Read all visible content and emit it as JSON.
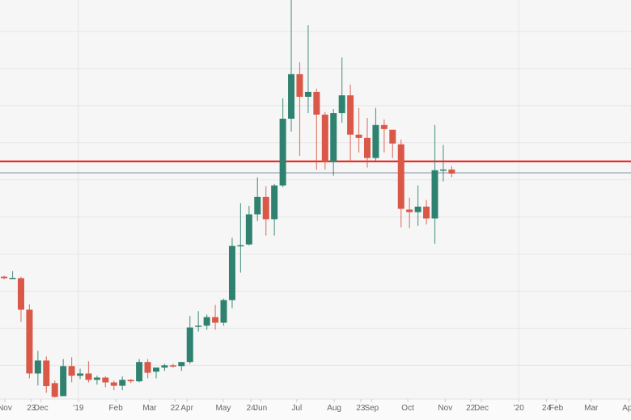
{
  "chart_data": {
    "type": "candlestick",
    "title": "",
    "xlabel": "",
    "ylabel": "",
    "ylim": [
      3180,
      13850
    ],
    "xlim": [
      "2018-10-28",
      "2020-04-03"
    ],
    "grid": {
      "horizontal": true,
      "horizontal_step": 1000,
      "vertical_at": [
        "2019-01-01",
        "2020-01-01"
      ]
    },
    "colors": {
      "up": "#2f8270",
      "down": "#d95847",
      "level_line": "#e8130f",
      "price_line": "#8a93a6",
      "background": "#f6f6f6",
      "grid": "#e6e6e6"
    },
    "horizontal_lines": [
      {
        "kind": "level",
        "value": 9500
      },
      {
        "kind": "last-price",
        "value": 9190
      }
    ],
    "x_ticks": [
      {
        "date": "2018-11-01",
        "label": "Nov"
      },
      {
        "date": "2018-11-23",
        "label": "23"
      },
      {
        "date": "2018-12-01",
        "label": "Dec"
      },
      {
        "date": "2019-01-01",
        "label": "'19"
      },
      {
        "date": "2019-02-01",
        "label": "Feb"
      },
      {
        "date": "2019-03-01",
        "label": "Mar"
      },
      {
        "date": "2019-03-22",
        "label": "22"
      },
      {
        "date": "2019-04-01",
        "label": "Apr"
      },
      {
        "date": "2019-05-01",
        "label": "May"
      },
      {
        "date": "2019-05-24",
        "label": "24"
      },
      {
        "date": "2019-06-01",
        "label": "Jun"
      },
      {
        "date": "2019-07-01",
        "label": "Jul"
      },
      {
        "date": "2019-08-01",
        "label": "Aug"
      },
      {
        "date": "2019-08-23",
        "label": "23"
      },
      {
        "date": "2019-09-01",
        "label": "Sep"
      },
      {
        "date": "2019-10-01",
        "label": "Oct"
      },
      {
        "date": "2019-11-01",
        "label": "Nov"
      },
      {
        "date": "2019-11-22",
        "label": "22"
      },
      {
        "date": "2019-12-01",
        "label": "Dec"
      },
      {
        "date": "2020-01-01",
        "label": "'20"
      },
      {
        "date": "2020-01-24",
        "label": "24"
      },
      {
        "date": "2020-02-01",
        "label": "Feb"
      },
      {
        "date": "2020-03-01",
        "label": "Mar"
      },
      {
        "date": "2020-04-01",
        "label": "Apr"
      }
    ],
    "candles": [
      {
        "date": "2018-10-29",
        "o": 6390,
        "h": 6420,
        "l": 6320,
        "c": 6350
      },
      {
        "date": "2018-11-05",
        "o": 6350,
        "h": 6540,
        "l": 6330,
        "c": 6360
      },
      {
        "date": "2018-11-12",
        "o": 6350,
        "h": 6390,
        "l": 5170,
        "c": 5500
      },
      {
        "date": "2018-11-19",
        "o": 5500,
        "h": 5650,
        "l": 3650,
        "c": 3780
      },
      {
        "date": "2018-11-26",
        "o": 3780,
        "h": 4390,
        "l": 3460,
        "c": 4130
      },
      {
        "date": "2018-12-03",
        "o": 4130,
        "h": 4240,
        "l": 3260,
        "c": 3440
      },
      {
        "date": "2018-12-10",
        "o": 3520,
        "h": 3590,
        "l": 3130,
        "c": 3150
      },
      {
        "date": "2018-12-17",
        "o": 3170,
        "h": 4170,
        "l": 3170,
        "c": 3980
      },
      {
        "date": "2018-12-24",
        "o": 3980,
        "h": 4220,
        "l": 3540,
        "c": 3720
      },
      {
        "date": "2018-12-31",
        "o": 3720,
        "h": 3910,
        "l": 3630,
        "c": 3780
      },
      {
        "date": "2019-01-07",
        "o": 3780,
        "h": 4110,
        "l": 3540,
        "c": 3610
      },
      {
        "date": "2019-01-14",
        "o": 3610,
        "h": 3720,
        "l": 3480,
        "c": 3670
      },
      {
        "date": "2019-01-21",
        "o": 3670,
        "h": 3700,
        "l": 3410,
        "c": 3540
      },
      {
        "date": "2019-01-28",
        "o": 3540,
        "h": 3590,
        "l": 3330,
        "c": 3450
      },
      {
        "date": "2019-02-04",
        "o": 3450,
        "h": 3700,
        "l": 3330,
        "c": 3610
      },
      {
        "date": "2019-02-11",
        "o": 3610,
        "h": 3630,
        "l": 3520,
        "c": 3570
      },
      {
        "date": "2019-02-18",
        "o": 3570,
        "h": 4170,
        "l": 3540,
        "c": 4090
      },
      {
        "date": "2019-02-25",
        "o": 4090,
        "h": 4170,
        "l": 3650,
        "c": 3800
      },
      {
        "date": "2019-03-04",
        "o": 3830,
        "h": 3940,
        "l": 3650,
        "c": 3940
      },
      {
        "date": "2019-03-11",
        "o": 3940,
        "h": 4040,
        "l": 3850,
        "c": 4000
      },
      {
        "date": "2019-03-18",
        "o": 4000,
        "h": 4040,
        "l": 3940,
        "c": 3980
      },
      {
        "date": "2019-03-25",
        "o": 3980,
        "h": 4090,
        "l": 3850,
        "c": 4090
      },
      {
        "date": "2019-04-01",
        "o": 4090,
        "h": 5330,
        "l": 4040,
        "c": 5020
      },
      {
        "date": "2019-04-08",
        "o": 5040,
        "h": 5460,
        "l": 4910,
        "c": 5070
      },
      {
        "date": "2019-04-15",
        "o": 5070,
        "h": 5370,
        "l": 4960,
        "c": 5300
      },
      {
        "date": "2019-04-22",
        "o": 5300,
        "h": 5630,
        "l": 4960,
        "c": 5150
      },
      {
        "date": "2019-04-29",
        "o": 5150,
        "h": 5800,
        "l": 5070,
        "c": 5760
      },
      {
        "date": "2019-05-06",
        "o": 5760,
        "h": 7440,
        "l": 5540,
        "c": 7220
      },
      {
        "date": "2019-05-13",
        "o": 7220,
        "h": 8370,
        "l": 6500,
        "c": 7240
      },
      {
        "date": "2019-05-20",
        "o": 7260,
        "h": 8300,
        "l": 7230,
        "c": 8070
      },
      {
        "date": "2019-05-27",
        "o": 8070,
        "h": 9070,
        "l": 7890,
        "c": 8540
      },
      {
        "date": "2019-06-03",
        "o": 8540,
        "h": 8830,
        "l": 7500,
        "c": 7940
      },
      {
        "date": "2019-06-10",
        "o": 7940,
        "h": 8890,
        "l": 7500,
        "c": 8850
      },
      {
        "date": "2019-06-17",
        "o": 8850,
        "h": 11200,
        "l": 8800,
        "c": 10650
      },
      {
        "date": "2019-06-24",
        "o": 10650,
        "h": 13850,
        "l": 10300,
        "c": 11850
      },
      {
        "date": "2019-07-01",
        "o": 11850,
        "h": 12170,
        "l": 9650,
        "c": 11240
      },
      {
        "date": "2019-07-08",
        "o": 11240,
        "h": 13170,
        "l": 10800,
        "c": 11370
      },
      {
        "date": "2019-07-15",
        "o": 11370,
        "h": 11460,
        "l": 9280,
        "c": 10760
      },
      {
        "date": "2019-07-22",
        "o": 10760,
        "h": 10830,
        "l": 9280,
        "c": 9500
      },
      {
        "date": "2019-07-29",
        "o": 9480,
        "h": 10910,
        "l": 9110,
        "c": 10800
      },
      {
        "date": "2019-08-05",
        "o": 10800,
        "h": 12300,
        "l": 10540,
        "c": 11280
      },
      {
        "date": "2019-08-12",
        "o": 11280,
        "h": 11570,
        "l": 9500,
        "c": 10220
      },
      {
        "date": "2019-08-19",
        "o": 10220,
        "h": 10940,
        "l": 9740,
        "c": 10130
      },
      {
        "date": "2019-08-26",
        "o": 10130,
        "h": 10670,
        "l": 9330,
        "c": 9590
      },
      {
        "date": "2019-09-02",
        "o": 9590,
        "h": 10940,
        "l": 9520,
        "c": 10480
      },
      {
        "date": "2019-09-09",
        "o": 10480,
        "h": 10630,
        "l": 9740,
        "c": 10370
      },
      {
        "date": "2019-09-16",
        "o": 10350,
        "h": 10350,
        "l": 9590,
        "c": 9980
      },
      {
        "date": "2019-09-23",
        "o": 9960,
        "h": 10090,
        "l": 7720,
        "c": 8220
      },
      {
        "date": "2019-09-30",
        "o": 8200,
        "h": 8520,
        "l": 7700,
        "c": 8130
      },
      {
        "date": "2019-10-07",
        "o": 8130,
        "h": 8850,
        "l": 7760,
        "c": 8280
      },
      {
        "date": "2019-10-14",
        "o": 8280,
        "h": 8460,
        "l": 7800,
        "c": 7960
      },
      {
        "date": "2019-10-21",
        "o": 7960,
        "h": 10480,
        "l": 7280,
        "c": 9260
      },
      {
        "date": "2019-10-28",
        "o": 9260,
        "h": 9940,
        "l": 8960,
        "c": 9280
      },
      {
        "date": "2019-11-04",
        "o": 9280,
        "h": 9370,
        "l": 9070,
        "c": 9170
      }
    ]
  }
}
